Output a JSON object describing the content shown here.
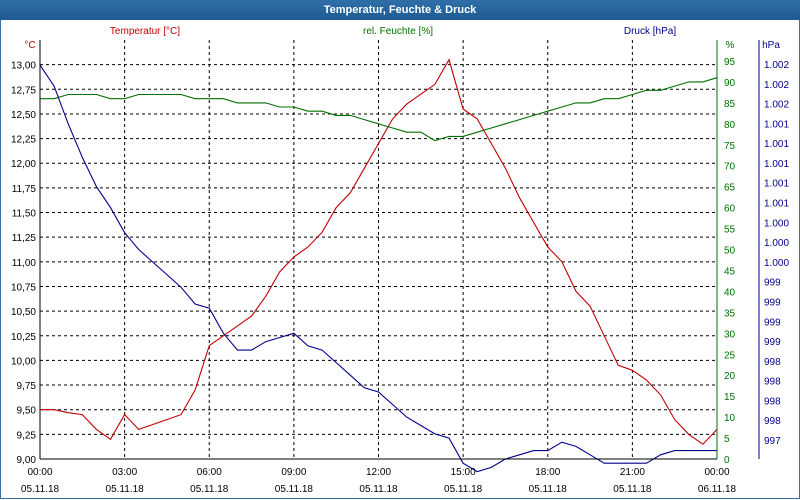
{
  "window": {
    "title": "Temperatur, Feuchte & Druck"
  },
  "chart_data": {
    "type": "line",
    "x_ticks": [
      {
        "time": "00:00",
        "date": "05.11.18"
      },
      {
        "time": "03:00",
        "date": "05.11.18"
      },
      {
        "time": "06:00",
        "date": "05.11.18"
      },
      {
        "time": "09:00",
        "date": "05.11.18"
      },
      {
        "time": "12:00",
        "date": "05.11.18"
      },
      {
        "time": "15:00",
        "date": "05.11.18"
      },
      {
        "time": "18:00",
        "date": "05.11.18"
      },
      {
        "time": "21:00",
        "date": "05.11.18"
      },
      {
        "time": "00:00",
        "date": "06.11.18"
      }
    ],
    "axes": {
      "temperature": {
        "label": "Temperatur [°C]",
        "unit": "°C",
        "color": "#c00000",
        "range": [
          9.0,
          13.25
        ],
        "ticks": [
          "13,00",
          "12,75",
          "12,50",
          "12,25",
          "12,00",
          "11,75",
          "11,50",
          "11,25",
          "11,00",
          "10,75",
          "10,50",
          "10,25",
          "10,00",
          "9,75",
          "9,50",
          "9,25",
          "9,00"
        ]
      },
      "humidity": {
        "label": "rel. Feuchte [%]",
        "unit": "%",
        "color": "#007000",
        "range": [
          0,
          100
        ],
        "ticks": [
          "95",
          "90",
          "85",
          "80",
          "75",
          "70",
          "65",
          "60",
          "55",
          "50",
          "45",
          "40",
          "35",
          "30",
          "25",
          "20",
          "15",
          "10",
          "5",
          "0"
        ]
      },
      "pressure": {
        "label": "Druck [hPa]",
        "unit": "hPa",
        "color": "#00008b",
        "ticks": [
          "1.002",
          "1.002",
          "1.002",
          "1.001",
          "1.001",
          "1.001",
          "1.001",
          "1.001",
          "1.000",
          "1.000",
          "1.000",
          "999",
          "999",
          "999",
          "999",
          "998",
          "998",
          "998",
          "998",
          "997"
        ]
      }
    },
    "x_hours": [
      0,
      0.5,
      1,
      1.5,
      2,
      2.5,
      3,
      3.5,
      4,
      4.5,
      5,
      5.5,
      6,
      6.5,
      7,
      7.5,
      8,
      8.5,
      9,
      9.5,
      10,
      10.5,
      11,
      11.5,
      12,
      12.5,
      13,
      13.5,
      14,
      14.5,
      15,
      15.5,
      16,
      16.5,
      17,
      17.5,
      18,
      18.5,
      19,
      19.5,
      20,
      20.5,
      21,
      21.5,
      22,
      22.5,
      23,
      23.5,
      24
    ],
    "series": [
      {
        "name": "Temperatur [°C]",
        "axis": "temperature",
        "color": "#c00000",
        "values": [
          9.5,
          9.5,
          9.47,
          9.45,
          9.3,
          9.2,
          9.45,
          9.3,
          9.35,
          9.4,
          9.45,
          9.7,
          10.15,
          10.25,
          10.35,
          10.45,
          10.65,
          10.9,
          11.05,
          11.15,
          11.3,
          11.55,
          11.7,
          11.95,
          12.2,
          12.45,
          12.6,
          12.7,
          12.8,
          13.05,
          12.55,
          12.45,
          12.2,
          11.95,
          11.65,
          11.4,
          11.15,
          11.0,
          10.7,
          10.55,
          10.25,
          9.95,
          9.9,
          9.8,
          9.65,
          9.4,
          9.25,
          9.15,
          9.3
        ]
      },
      {
        "name": "rel. Feuchte [%]",
        "axis": "humidity",
        "color": "#007000",
        "values": [
          86,
          86,
          87,
          87,
          87,
          86,
          86,
          87,
          87,
          87,
          87,
          86,
          86,
          86,
          85,
          85,
          85,
          84,
          84,
          83,
          83,
          82,
          82,
          81,
          80,
          79,
          78,
          78,
          76,
          77,
          77,
          78,
          79,
          80,
          81,
          82,
          83,
          84,
          85,
          85,
          86,
          86,
          87,
          88,
          88,
          89,
          90,
          90,
          91
        ]
      },
      {
        "name": "Druck [hPa]",
        "axis": "pressure",
        "color": "#00008b",
        "values": [
          94,
          89,
          80,
          72,
          65,
          60,
          54,
          50,
          47,
          44,
          41,
          37,
          36,
          30,
          26,
          26,
          28,
          29,
          30,
          27,
          26,
          23,
          20,
          17,
          16,
          13,
          10,
          8,
          6,
          5,
          -1,
          -3,
          -2,
          0,
          1,
          2,
          2,
          4,
          3,
          1,
          -1,
          -1,
          -1,
          -1,
          1,
          2,
          2,
          2,
          2
        ]
      }
    ]
  }
}
